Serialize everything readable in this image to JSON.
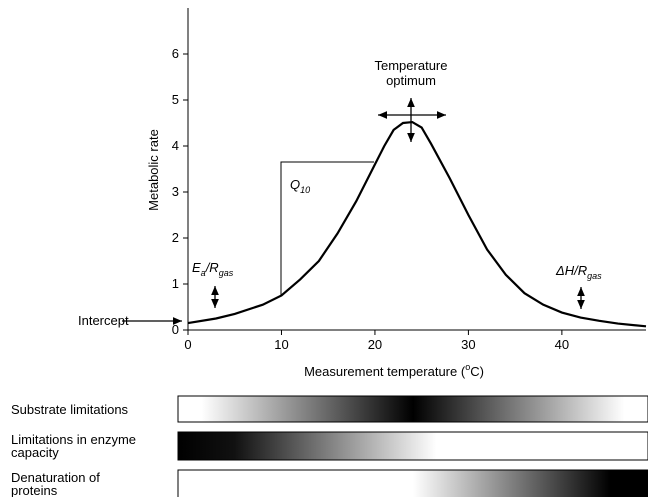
{
  "chart_data": {
    "type": "line",
    "x_label": [
      "Measurement temperature (",
      "o",
      "C)"
    ],
    "y_label": "Metabolic rate",
    "x": [
      0,
      3,
      5,
      8,
      10,
      12,
      14,
      16,
      18,
      20,
      21,
      22,
      23,
      24,
      25,
      26,
      28,
      30,
      32,
      34,
      36,
      38,
      40,
      42,
      44,
      46,
      49
    ],
    "values": [
      0.15,
      0.25,
      0.35,
      0.55,
      0.75,
      1.1,
      1.5,
      2.1,
      2.8,
      3.6,
      4.0,
      4.35,
      4.5,
      4.52,
      4.4,
      4.05,
      3.3,
      2.5,
      1.75,
      1.2,
      0.8,
      0.55,
      0.38,
      0.27,
      0.2,
      0.14,
      0.08
    ],
    "color": "#000000",
    "xlim": [
      0,
      49
    ],
    "xticks": [
      0,
      10,
      20,
      30,
      40
    ],
    "ylim": [
      0,
      7
    ],
    "yticks": [
      0,
      1,
      2,
      3,
      4,
      5,
      6
    ],
    "annotations": {
      "optimum": "Temperature optimum",
      "q10": [
        "Q",
        "10"
      ],
      "activation": [
        "E",
        "a",
        "/R",
        "gas"
      ],
      "enthalpy": [
        "ΔH/R",
        "gas"
      ],
      "intercept": "Intercept"
    }
  },
  "constraints": [
    "Substrate limitations",
    "Limitations in enzyme capacity",
    "Denaturation of proteins"
  ]
}
